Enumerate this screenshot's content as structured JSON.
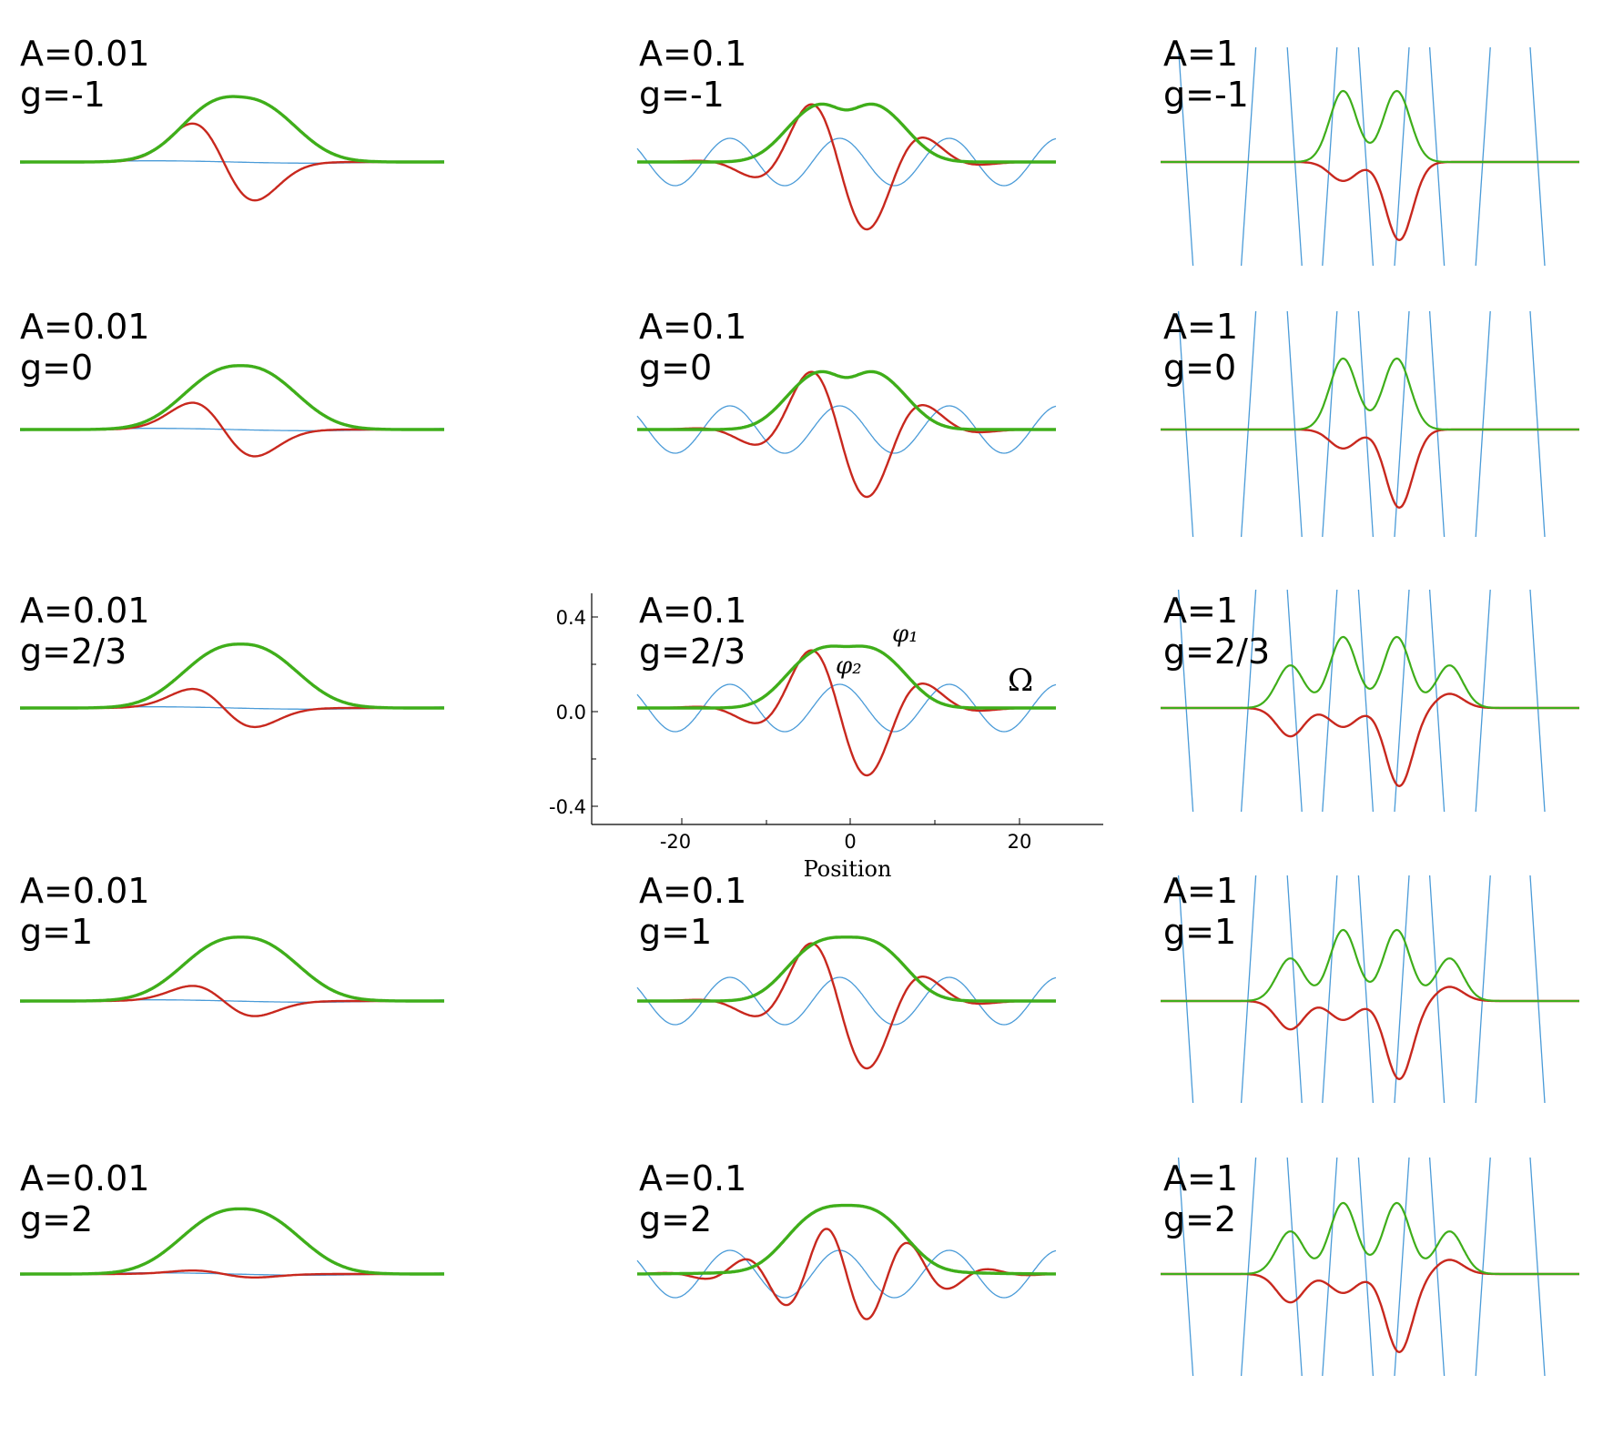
{
  "figure": {
    "axis": {
      "y_ticks": [
        "0.4",
        "0.0",
        "-0.4"
      ],
      "x_ticks": [
        "-20",
        "0",
        "20"
      ],
      "xlabel": "Position",
      "curve_labels": {
        "phi1": "φ₁",
        "phi2": "φ₂",
        "omega": "Ω"
      }
    }
  },
  "chart_data": {
    "type": "line",
    "x_range": [
      -25,
      25
    ],
    "ylim": [
      -0.5,
      0.5
    ],
    "axes_panel": "A=0.1, g=2/3",
    "colors": {
      "phi1": "#3fae1a",
      "phi2": "#c8281e",
      "omega": "#4a9bd8"
    },
    "panels": [
      {
        "A_label": "A=0.01",
        "g_label": "g=-1"
      },
      {
        "A_label": "A=0.1",
        "g_label": "g=-1"
      },
      {
        "A_label": "A=1",
        "g_label": "g=-1"
      },
      {
        "A_label": "A=0.01",
        "g_label": "g=0"
      },
      {
        "A_label": "A=0.1",
        "g_label": "g=0"
      },
      {
        "A_label": "A=1",
        "g_label": "g=0"
      },
      {
        "A_label": "A=0.01",
        "g_label": "g=2/3"
      },
      {
        "A_label": "A=0.1",
        "g_label": "g=2/3"
      },
      {
        "A_label": "A=1",
        "g_label": "g=2/3"
      },
      {
        "A_label": "A=0.01",
        "g_label": "g=1"
      },
      {
        "A_label": "A=0.1",
        "g_label": "g=1"
      },
      {
        "A_label": "A=1",
        "g_label": "g=1"
      },
      {
        "A_label": "A=0.01",
        "g_label": "g=2"
      },
      {
        "A_label": "A=0.1",
        "g_label": "g=2"
      },
      {
        "A_label": "A=1",
        "g_label": "g=2"
      }
    ],
    "series": [
      {
        "name": "φ₁"
      },
      {
        "name": "φ₂"
      },
      {
        "name": "Ω"
      }
    ]
  }
}
